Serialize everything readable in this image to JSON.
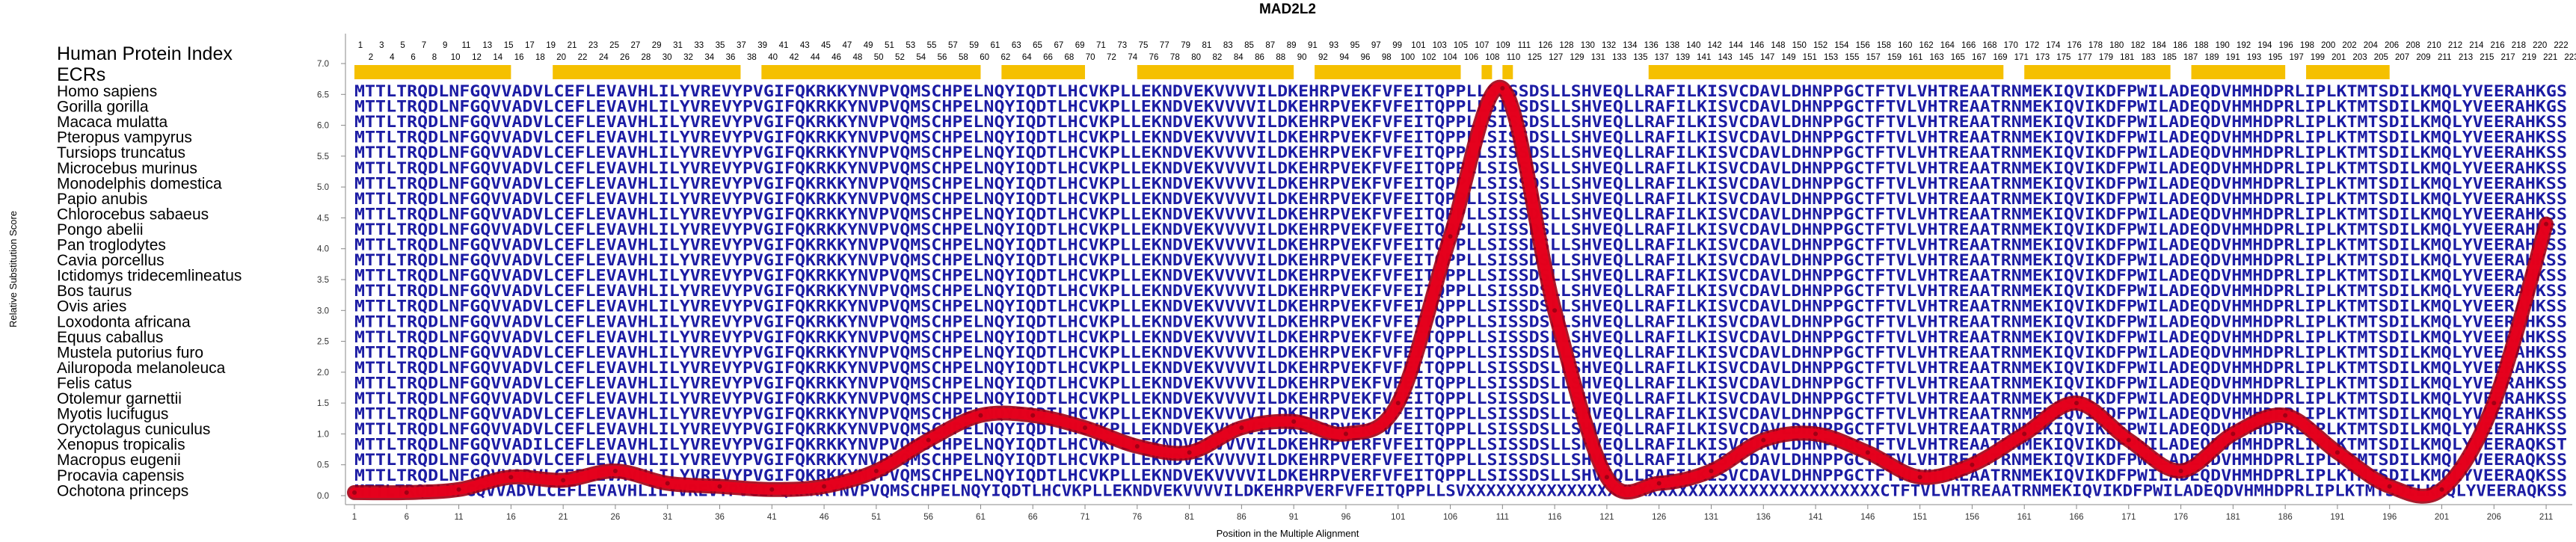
{
  "chart_data": {
    "type": "line",
    "title": "MAD2L2",
    "xlabel": "Position in the Multiple Alignment",
    "ylabel": "Relative Substitution Score",
    "ylim": [
      0,
      7.0
    ],
    "yticks": [
      "0.0",
      "0.5",
      "1.0",
      "1.5",
      "2.0",
      "2.5",
      "3.0",
      "3.5",
      "4.0",
      "4.5",
      "5.0",
      "5.5",
      "6.0",
      "6.5",
      "7.0"
    ],
    "xlim": [
      1,
      213
    ],
    "xticks": [
      1,
      6,
      11,
      16,
      21,
      26,
      31,
      36,
      41,
      46,
      51,
      56,
      61,
      66,
      71,
      76,
      81,
      86,
      91,
      96,
      101,
      106,
      111,
      116,
      121,
      126,
      131,
      136,
      141,
      146,
      151,
      156,
      161,
      166,
      171,
      176,
      181,
      186,
      191,
      196,
      201,
      206,
      211
    ],
    "human_index_label": "Human Protein Index",
    "ecr_label": "ECRs",
    "human_index_row1": [
      "1",
      "3",
      "5",
      "7",
      "9",
      "11",
      "13",
      "15",
      "17",
      "19",
      "21",
      "23",
      "25",
      "27",
      "29",
      "31",
      "33",
      "35",
      "37",
      "39",
      "41",
      "43",
      "45",
      "47",
      "49",
      "51",
      "53",
      "55",
      "57",
      "59",
      "61",
      "63",
      "65",
      "67",
      "69",
      "71",
      "73",
      "75",
      "77",
      "79",
      "81",
      "83",
      "85",
      "87",
      "89",
      "91",
      "93",
      "95",
      "97",
      "99",
      "101",
      "103",
      "105",
      "107",
      "109",
      "111",
      "126",
      "128",
      "130",
      "132",
      "134",
      "136",
      "138",
      "140",
      "142",
      "144",
      "146",
      "148",
      "150",
      "152",
      "154",
      "156",
      "158",
      "160",
      "162",
      "164",
      "166",
      "168",
      "170",
      "172",
      "174",
      "176",
      "178",
      "180",
      "182",
      "184",
      "186",
      "188",
      "190",
      "192",
      "194",
      "196",
      "198",
      "200",
      "202",
      "204",
      "206",
      "208",
      "210",
      "212",
      "214",
      "216",
      "218",
      "220",
      "222"
    ],
    "human_index_row2": [
      "2",
      "4",
      "6",
      "8",
      "10",
      "12",
      "14",
      "16",
      "18",
      "20",
      "22",
      "24",
      "26",
      "28",
      "30",
      "32",
      "34",
      "36",
      "38",
      "40",
      "42",
      "44",
      "46",
      "48",
      "50",
      "52",
      "54",
      "56",
      "58",
      "60",
      "62",
      "64",
      "66",
      "68",
      "70",
      "72",
      "74",
      "76",
      "78",
      "80",
      "82",
      "84",
      "86",
      "88",
      "90",
      "92",
      "94",
      "96",
      "98",
      "100",
      "102",
      "104",
      "106",
      "108",
      "110",
      "125",
      "127",
      "129",
      "131",
      "133",
      "135",
      "137",
      "139",
      "141",
      "143",
      "145",
      "147",
      "149",
      "151",
      "153",
      "155",
      "157",
      "159",
      "161",
      "163",
      "165",
      "167",
      "169",
      "171",
      "173",
      "175",
      "177",
      "179",
      "181",
      "183",
      "185",
      "187",
      "189",
      "191",
      "193",
      "195",
      "197",
      "199",
      "201",
      "203",
      "205",
      "207",
      "209",
      "211",
      "213",
      "215",
      "217",
      "219",
      "221",
      "223"
    ],
    "ecrs": [
      [
        1,
        16
      ],
      [
        20,
        38
      ],
      [
        40,
        61
      ],
      [
        63,
        71
      ],
      [
        76,
        91
      ],
      [
        93,
        107
      ],
      [
        109,
        110
      ],
      [
        111,
        112
      ],
      [
        125,
        159
      ],
      [
        161,
        175
      ],
      [
        177,
        186
      ],
      [
        188,
        196
      ]
    ],
    "species": [
      "Homo sapiens",
      "Gorilla gorilla",
      "Macaca mulatta",
      "Pteropus vampyrus",
      "Tursiops truncatus",
      "Microcebus murinus",
      "Monodelphis domestica",
      "Papio anubis",
      "Chlorocebus sabaeus",
      "Pongo abelii",
      "Pan troglodytes",
      "Cavia porcellus",
      "Ictidomys tridecemlineatus",
      "Bos taurus",
      "Ovis aries",
      "Loxodonta africana",
      "Equus caballus",
      "Mustela putorius furo",
      "Ailuropoda melanoleuca",
      "Felis catus",
      "Otolemur garnettii",
      "Myotis lucifugus",
      "Oryctolagus cuniculus",
      "Xenopus tropicalis",
      "Macropus eugenii",
      "Procavia capensis",
      "Ochotona princeps"
    ],
    "sequences": [
      "MTTLTRQDLNFGQVVADVLCEFLEVAVHLILYVREVYPVGIFQKRKKYNVPVQMSCHPELNQYIQDTLHCVKPLLEKNDVEKVVVVILDKEHRPVEKFVFEITQPPLLSISSDSLLSHVEQLLRAFILKISVCDAVLDHNPPGCTFTVLVHTREAATRNMEKIQVIKDFPWILADEQDVHMHDPRLIPLKTMTSDILKMQLYVEERAHKGS",
      "MTTLTRQDLNFGQVVADVLCEFLEVAVHLILYVREVYPVGIFQKRKKYNVPVQMSCHPELNQYIQDTLHCVKPLLEKNDVEKVVVVILDKEHRPVEKFVFEITQPPLLSISSDSLLSHVEQLLRAFILKISVCDAVLDHNPPGCTFTVLVHTREAATRNMEKIQVIKDFPWILADEQDVHMHDPRLIPLKTMTSDILKMQLYVEERAHKGS",
      "MTTLTRQDLNFGQVVADVLCEFLEVAVHLILYVREVYPVGIFQKRKKYNVPVQMSCHPELNQYIQDTLHCVKPLLEKNDVEKVVVVILDKEHRPVEKFVFEITQPPLLSISSDSLLSHVEQLLRAFILKISVCDAVLDHNPPGCTFTVLVHTREAATRNMEKIQVIKDFPWILADEQDVHMHDPRLIPLKTMTSDILKMQLYVEERAHKSS",
      "MTTLTRQDLNFGQVVADVLCEFLEVAVHLILYVREVYPVGIFQKRKKYNVPVQMSCHPELNQYIQDTLHCVKPLLEKNDVEKVVVVILDKEHRPVEKFVFEITQPPLLSISSDSLLSHVEQLLRAFILKISVCDAVLDHNPPGCTFTVLVHTREAATRNMEKIQVIKDFPWILADEQDVHMHDPRLIPLKTMTSDILKMQLYVEERAHKSS",
      "MTTLTRQDLNFGQVVADVLCEFLEVAVHLILYVREVYPVGIFQKRKKYNVPVQMSCHPELNQYIQDTLHCVKPLLEKNDVEKVVVVILDKEHRPVEKFVFEITQPPLLSISSDSLLSHVEQLLRAFILKISVCDAVLDHNPPGCTFTVLVHTREAATRNMEKIQVIKDFPWILADEQDVHMHDPRLIPLKTMTSDILKMQLYVEERAHKSS",
      "MTTLTRQDLNFGQVVADVLCEFLEVAVHLILYVREVYPVGIFQKRKKYNVPVQMSCHPELNQYIQDTLHCVKPLLEKNDVEKVVVVILDKEHRPVEKFVFEITQPPLLSISSDSLLSHVEQLLRAFILKISVCDAVLDHNPPGCTFTVLVHTREAATRNMEKIQVIKDFPWILADEQDVHMHDPRLIPLKTMTSDILKMQLYVEERAHKSS",
      "MTTLTRQDLNFGQVVADVLCEFLEVAVHLILYVREVYPVGIFQKRKKYNVPVQMSCHPELNQYIQDTLHCVKPLLEKNDVEKVVVVILDKEHRPVEKFVFEITQPPLLSISSDSLLSHVEQLLRAFILKISVCDAVLDHNPPGCTFTVLVHTREAATRNMEKIQVIKDFPWILADEQDVHMHDPRLIPLKTMTSDILKMQLYVEERAHKSS",
      "MTTLTRQDLNFGQVVADVLCEFLEVAVHLILYVREVYPVGIFQKRKKYNVPVQMSCHPELNQYIQDTLHCVKPLLEKNDVEKVVVVILDKEHRPVEKFVFEITQPPLLSISSDSLLSHVEQLLRAFILKISVCDAVLDHNPPGCTFTVLVHTREAATRNMEKIQVIKDFPWILADEQDVHMHDPRLIPLKTMTSDILKMQLYVEERAHKSS",
      "MTTLTRQDLNFGQVVADVLCEFLEVAVHLILYVREVYPVGIFQKRKKYNVPVQMSCHPELNQYIQDTLHCVKPLLEKNDVEKVVVVILDKEHRPVEKFVFEITQPPLLSISSDSLLSHVEQLLRAFILKISVCDAVLDHNPPGCTFTVLVHTREAATRNMEKIQVIKDFPWILADEQDVHMHDPRLIPLKTMTSDILKMQLYVEERAHKSS",
      "MTTLTRQDLNFGQVVADVLCEFLEVAVHLILYVREVYPVGIFQKRKKYNVPVQMSCHPELNQYIQDTLHCVKPLLEKNDVEKVVVVILDKEHRPVEKFVFEITQPPLLSISSDSLLSHVEQLLRAFILKISVCDAVLDHNPPGCTFTVLVHTREAATRNMEKIQVIKDFPWILADEQDVHMHDPRLIPLKTMTSDILKMQLYVEERAHKSS",
      "MTTLTRQDLNFGQVVADVLCEFLEVAVHLILYVREVYPVGIFQKRKKYNVPVQMSCHPELNQYIQDTLHCVKPLLEKNDVEKVVVVILDKEHRPVEKFVFEITQPPLLSISSDSLLSHVEQLLRAFILKISVCDAVLDHNPPGCTFTVLVHTREAATRNMEKIQVIKDFPWILADEQDVHMHDPRLIPLKTMTSDILKMQLYVEERAHKSS",
      "MTTLTRQDLNFGQVVADVLCEFLEVAVHLILYVREVYPVGIFQKRKKYNVPVQMSCHPELNQYIQDTLHCVKPLLEKNDVEKVVVVILDKEHRPVEKFVFEITQPPLLSISSDSLLSHVEQLLRAFILKISVCDAVLDHNPPGCTFTVLVHTREAATRNMEKIQVIKDFPWILADEQDVHMHDPRLIPLKTMTSDILKMQLYVEERAHKSS",
      "MTTLTRQDLNFGQVVADVLCEFLEVAVHLILYVREVYPVGIFQKRKKYNVPVQMSCHPELNQYIQDTLHCVKPLLEKNDVEKVVVVILDKEHRPVEKFVFEITQPPLLSISSDSLLSHVEQLLRAFILKISVCDAVLDHNPPGCTFTVLVHTREAATRNMEKIQVIKDFPWILADEQDVHMHDPRLIPLKTMTSDILKMQLYVEERAHKSS",
      "MTTLTRQDLNFGQVVADVLCEFLEVAVHLILYVREVYPVGIFQKRKKYNVPVQMSCHPELNQYIQDTLHCVKPLLEKNDVEKVVVVILDKEHRPVEKFVFEITQPPLLSISSDSLLSHVEQLLRAFILKISVCDAVLDHNPPGCTFTVLVHTREAATRNMEKIQVIKDFPWILADEQDVHMHDPRLIPLKTMTSDILKMQLYVEERAHKSS",
      "MTTLTRQDLNFGQVVADVLCEFLEVAVHLILYVREVYPVGIFQKRKKYNVPVQMSCHPELNQYIQDTLHCVKPLLEKNDVEKVVVVILDKEHRPVEKFVFEITQPPLLSISSDSLLSHVEQLLRAFILKISVCDAVLDHNPPGCTFTVLVHTREAATRNMEKIQVIKDFPWILADEQDVHMHDPRLIPLKTMTSDILKMQLYVEERAHKSS",
      "MTTLTRQDLNFGQVVADVLCEFLEVAVHLILYVREVYPVGIFQKRKKYNVPVQMSCHPELNQYIQDTLHCVKPLLEKNDVEKVVVVILDKEHRPVEKFVFEITQPPLLSISSDSLLSHVEQLLRAFILKISVCDAVLDHNPPGCTFTVLVHTREAATRNMEKIQVIKDFPWILADEQDVHMHDPRLIPLKTMTSDILKMQLYVEERAHKSS",
      "MTTLTRQDLNFGQVVADVLCEFLEVAVHLILYVREVYPVGIFQKRKKYNVPVQMSCHPELNQYIQDTLHCVKPLLEKNDVEKVVVVILDKEHRPVEKFVFEITQPPLLSISSDSLLSHVEQLLRAFILKISVCDAVLDHNPPGCTFTVLVHTREAATRNMEKIQVIKDFPWILADEQDVHMHDPRLIPLKTMTSDILKMQLYVEERAHKSS",
      "MTTLTRQDLNFGQVVADVLCEFLEVAVHLILYVREVYPVGIFQKRKKYNVPVQMSCHPELNQYIQDTLHCVKPLLEKNDVEKVVVVILDKEHRPVEKFVFEITQPPLLSISSDSLLSHVEQLLRAFILKISVCDAVLDHNPPGCTFTVLVHTREAATRNMEKIQVIKDFPWILADEQDVHMHDPRLIPLKTMTSDILKMQLYVEERAHKSS",
      "MTTLTRQDLNFGQVVADVLCEFLEVAVHLILYVREVYPVGIFQKRKKYNVPVQMSCHPELNQYIQDTLHCVKPLLEKNDVEKVVVVILDKEHRPVEKFVFEITQPPLLSISSDSLLSHVEQLLRAFILKISVCDAVLDHNPPGCTFTVLVHTREAATRNMEKIQVIKDFPWILADEQDVHMHDPRLIPLKTMTSDILKMQLYVEERAHKSS",
      "MTTLTRQDLNFGQVVADVLCEFLEVAVHLILYVREVYPVGIFQKRKKYNVPVQMSCHPELNQYIQDTLHCVKPLLEKNDVEKVVVVILDKEHRPVEKFVFEITQPPLLSISSDSLLSHVEQLLRAFILKISVCDAVLDHNPPGCTFTVLVHTREAATRNMEKIQVIKDFPWILADEQDVHMHDPRLIPLKTMTSDILKMQLYVEERAHKSS",
      "MTTLTRQDLNFGQVVADVLCEFLEVAVHLILYVREVYPVGIFQKRKKYNVPVQMSCHPELNQYIQDTLHCVKPLLEKNDVEKVVVVILDKEHRPVEKFVFEITQPPLLSISSDSLLSHVEQLLRAFILKISVCDAVLDHNPPGCTFTVLVHTREAATRNMEKIQVIKDFPWILADEQDVHMHDPRLIPLKTMTSDILKMQLYVEERAHKSS",
      "MTTLTRQDLNFGQVVADVLCEFLEVAVHLILYVREVYPVGIFQKRKKYNVPVQMSCHPELNQYIQDTLHCVKPLLEKNDVEKVVVVILDKEHRPVEKFVFEITQPPLLSISSDSLLSHVEQLLRAFILKISVCDAVLDHNPPGCTFTVLVHTREAATRNMEKIQVIKDFPWILADEQDVHMHDPRLIPLKTMTSDILKMQLYVEERAHKSS",
      "MTTLTRQDLNFGQVVADVLCEFLEVAVHLILYVREVYPVGIFQKRKKYNVPVQMSCHPELNQYIQDTLHCVKPLLEKNDVEKVVVVILDKEHRPVEKFVFEITQPPLLSISSDSLLSHVEQLLRAFILKISVCDAVLDHNPPGCTFTVLVHTREAATRNMEKIQVIKDFPWILADEQDVHMHDPRLIPLKTMTSDILKMQLYVEERAHKSS",
      "MTTLTRQDLNFGQVVADILCEFLEVAVHLILYVREVYPVGIFQKRKKYNVPVQMSCHPELNQYIQDTLHCVKPLLEKNDVEKVVVVILDKEHRPVERFVFEITQPPLLSISSDSLLSHVEQLLRAFILKISVCDAVLDHNPPGCTFTVLVHTREAATRNMEKIQVIKDFPWILADEQDVHMHDPRLIPLKTMTSDILKMQLYVEERAQKST",
      "MTTLTRQDLNFGQVVADVLCEFLEVAVHLILYVREVYPVGIFQKRKKYNVPVQMSCHPELNQYIQDTLHCVKPLLEKNDVEKVVVVILDKEHRPVERFVFEITQPPLLSISSDSLLSHVEQLLRAFILKISVCDAVLDHNPPGCTFTVLVHTREAATRNMEKIQVIKDFPWILADEQDVHMHDPRLIPLKTMTSDILKMQLYVEERAQKSS",
      "MTTLTRQDLNFGQVVADVLCEFLEVAVHLILYVREVYPVGIFQKRKKYNVPVQMSCHPELNQYIQDTLHCVKPLLEKNDVEKVVVVILDKEHRPVERFVFEITQPPLLSISSDSLLSHVEQLLRAFILKISVCDAVLDHNPPGCTFTVLVHTREAATRNMEKIQVIKDFPWILADEQDVHMHDPRLIPLKTMTSDILKMQLYVEERAQKSS",
      "MTTLTRQDLNFGQVVADVLCEFLEVAVHLILYVREVYPVGIFQKRKKYNVPVQMSCHPELNQYIQDTLHCVKPLLEKNDVEKVVVVILDKEHRPVERFVFEITQPPLLSVXXXXXXXXXXXXXXXXXXXXXXXXXXXXXXXXXXXXXXXXXCTFTVLVHTREAATRNMEKIQVIKDFPWILADEQDVHMHDPRLIPLKTMTSDILKMQLYVEERAQKSS"
    ],
    "series": [
      {
        "name": "",
        "x": [
          1,
          6,
          11,
          16,
          21,
          26,
          31,
          36,
          41,
          46,
          51,
          56,
          61,
          66,
          71,
          76,
          81,
          86,
          91,
          96,
          101,
          106,
          111,
          116,
          121,
          126,
          131,
          136,
          141,
          146,
          151,
          156,
          161,
          166,
          171,
          176,
          181,
          186,
          191,
          196,
          201,
          206,
          211
        ],
        "y": [
          0.05,
          0.05,
          0.1,
          0.3,
          0.25,
          0.4,
          0.2,
          0.15,
          0.1,
          0.15,
          0.4,
          0.9,
          1.3,
          1.3,
          1.1,
          0.8,
          0.7,
          1.1,
          1.2,
          1.0,
          1.5,
          4.2,
          6.6,
          3.0,
          0.3,
          0.2,
          0.4,
          0.9,
          1.0,
          0.7,
          0.3,
          0.5,
          1.0,
          1.5,
          0.9,
          0.4,
          1.0,
          1.3,
          0.7,
          0.15,
          0.1,
          1.5,
          4.4
        ]
      }
    ],
    "grid": false,
    "colors": {
      "curve": "#e8001c",
      "curve_edge": "#a00014",
      "ecr": "#f5c000",
      "sequence": "#1c1ca4",
      "axis": "#888888"
    }
  }
}
